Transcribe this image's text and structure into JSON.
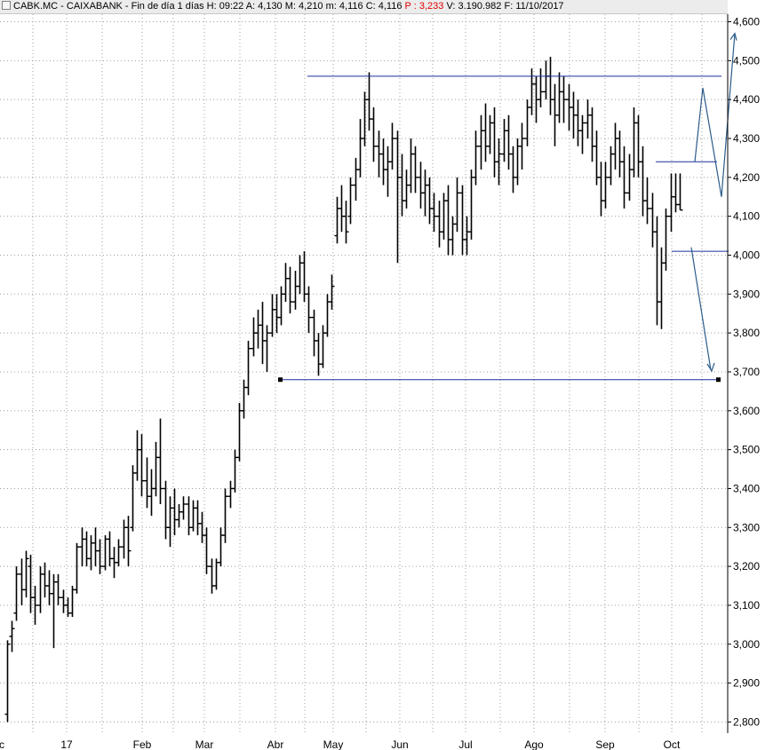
{
  "header": {
    "symbol": "CABK.MC - CAIXABANK",
    "period": "Fin de día 1 días",
    "time": "H: 09:22",
    "open": "A: 4,130",
    "high": "M: 4,210",
    "low": "m: 4,116",
    "close": "C: 4,116",
    "p": "P : 3,233",
    "volume": "V: 3.190.982",
    "date": "F: 11/10/2017"
  },
  "colors": {
    "price": "#000000",
    "trendline": "#1a2f9c",
    "arrow": "#2b5b8a",
    "grid": "#a0a0a0"
  },
  "chart_data": {
    "type": "ohlc",
    "y_axis": {
      "range": [
        2.78,
        4.63
      ],
      "ticks": [
        "4,600",
        "4,500",
        "4,400",
        "4,300",
        "4,200",
        "4,100",
        "4,000",
        "3,900",
        "3,800",
        "3,700",
        "3,600",
        "3,500",
        "3,400",
        "3,300",
        "3,200",
        "3,100",
        "3,000",
        "2,900",
        "2,800"
      ],
      "side": "right"
    },
    "x_axis": {
      "labels": [
        "c",
        "17",
        "Feb",
        "Mar",
        "Abr",
        "May",
        "Jun",
        "Jul",
        "Ago",
        "Sep",
        "Oct"
      ]
    },
    "grid": true,
    "series": [
      {
        "values": [
          [
            2.82,
            3.01,
            2.8,
            3.0
          ],
          [
            3.02,
            3.06,
            2.98,
            3.04
          ],
          [
            3.08,
            3.2,
            3.06,
            3.18
          ],
          [
            3.18,
            3.22,
            3.1,
            3.14
          ],
          [
            3.14,
            3.24,
            3.12,
            3.22
          ],
          [
            3.2,
            3.23,
            3.08,
            3.12
          ],
          [
            3.12,
            3.15,
            3.05,
            3.1
          ],
          [
            3.1,
            3.2,
            3.08,
            3.18
          ],
          [
            3.18,
            3.21,
            3.12,
            3.15
          ],
          [
            3.15,
            3.19,
            3.1,
            3.13
          ],
          [
            3.13,
            3.18,
            2.99,
            3.16
          ],
          [
            3.16,
            3.18,
            3.1,
            3.12
          ],
          [
            3.12,
            3.14,
            3.08,
            3.1
          ],
          [
            3.1,
            3.12,
            3.07,
            3.08
          ],
          [
            3.08,
            3.15,
            3.07,
            3.14
          ],
          [
            3.14,
            3.26,
            3.13,
            3.25
          ],
          [
            3.25,
            3.3,
            3.2,
            3.27
          ],
          [
            3.27,
            3.29,
            3.2,
            3.22
          ],
          [
            3.22,
            3.28,
            3.19,
            3.26
          ],
          [
            3.26,
            3.3,
            3.2,
            3.24
          ],
          [
            3.24,
            3.27,
            3.18,
            3.2
          ],
          [
            3.2,
            3.28,
            3.19,
            3.27
          ],
          [
            3.27,
            3.29,
            3.2,
            3.22
          ],
          [
            3.22,
            3.25,
            3.17,
            3.21
          ],
          [
            3.21,
            3.27,
            3.2,
            3.25
          ],
          [
            3.25,
            3.32,
            3.22,
            3.3
          ],
          [
            3.3,
            3.33,
            3.2,
            3.24
          ],
          [
            3.3,
            3.46,
            3.29,
            3.44
          ],
          [
            3.44,
            3.55,
            3.42,
            3.5
          ],
          [
            3.5,
            3.54,
            3.38,
            3.42
          ],
          [
            3.42,
            3.48,
            3.35,
            3.38
          ],
          [
            3.38,
            3.45,
            3.33,
            3.4
          ],
          [
            3.4,
            3.52,
            3.38,
            3.48
          ],
          [
            3.48,
            3.58,
            3.36,
            3.4
          ],
          [
            3.4,
            3.42,
            3.27,
            3.3
          ],
          [
            3.3,
            3.38,
            3.25,
            3.35
          ],
          [
            3.35,
            3.4,
            3.28,
            3.32
          ],
          [
            3.32,
            3.36,
            3.3,
            3.34
          ],
          [
            3.34,
            3.38,
            3.32,
            3.36
          ],
          [
            3.36,
            3.38,
            3.28,
            3.3
          ],
          [
            3.3,
            3.37,
            3.29,
            3.35
          ],
          [
            3.35,
            3.37,
            3.28,
            3.31
          ],
          [
            3.31,
            3.34,
            3.26,
            3.28
          ],
          [
            3.28,
            3.3,
            3.18,
            3.2
          ],
          [
            3.2,
            3.22,
            3.13,
            3.15
          ],
          [
            3.15,
            3.22,
            3.14,
            3.21
          ],
          [
            3.21,
            3.3,
            3.2,
            3.28
          ],
          [
            3.28,
            3.4,
            3.26,
            3.38
          ],
          [
            3.38,
            3.42,
            3.35,
            3.4
          ],
          [
            3.4,
            3.5,
            3.39,
            3.48
          ],
          [
            3.48,
            3.62,
            3.47,
            3.6
          ],
          [
            3.6,
            3.68,
            3.58,
            3.66
          ],
          [
            3.66,
            3.78,
            3.64,
            3.76
          ],
          [
            3.76,
            3.84,
            3.74,
            3.8
          ],
          [
            3.8,
            3.86,
            3.76,
            3.82
          ],
          [
            3.82,
            3.88,
            3.72,
            3.78
          ],
          [
            3.78,
            3.82,
            3.7,
            3.8
          ],
          [
            3.8,
            3.9,
            3.79,
            3.86
          ],
          [
            3.86,
            3.9,
            3.8,
            3.84
          ],
          [
            3.84,
            3.92,
            3.82,
            3.9
          ],
          [
            3.9,
            3.98,
            3.88,
            3.94
          ],
          [
            3.94,
            3.97,
            3.85,
            3.88
          ],
          [
            3.88,
            3.96,
            3.86,
            3.92
          ],
          [
            3.92,
            4.0,
            3.9,
            3.98
          ],
          [
            3.98,
            4.01,
            3.88,
            3.9
          ],
          [
            3.9,
            3.92,
            3.8,
            3.84
          ],
          [
            3.84,
            3.86,
            3.74,
            3.78
          ],
          [
            3.78,
            3.8,
            3.69,
            3.72
          ],
          [
            3.72,
            3.82,
            3.71,
            3.8
          ],
          [
            3.8,
            3.9,
            3.79,
            3.88
          ],
          [
            3.88,
            3.95,
            3.86,
            3.92
          ],
          [
            4.05,
            4.15,
            4.03,
            4.12
          ],
          [
            4.12,
            4.18,
            4.06,
            4.1
          ],
          [
            4.1,
            4.14,
            4.03,
            4.06
          ],
          [
            4.1,
            4.2,
            4.08,
            4.18
          ],
          [
            4.18,
            4.25,
            4.14,
            4.22
          ],
          [
            4.22,
            4.35,
            4.2,
            4.3
          ],
          [
            4.3,
            4.42,
            4.28,
            4.4
          ],
          [
            4.4,
            4.47,
            4.32,
            4.35
          ],
          [
            4.35,
            4.38,
            4.24,
            4.28
          ],
          [
            4.28,
            4.32,
            4.2,
            4.26
          ],
          [
            4.26,
            4.3,
            4.18,
            4.22
          ],
          [
            4.22,
            4.28,
            4.15,
            4.24
          ],
          [
            4.24,
            4.34,
            4.22,
            4.3
          ],
          [
            4.3,
            4.32,
            3.98,
            4.2
          ],
          [
            4.2,
            4.26,
            4.1,
            4.14
          ],
          [
            4.14,
            4.22,
            4.12,
            4.18
          ],
          [
            4.18,
            4.3,
            4.16,
            4.26
          ],
          [
            4.26,
            4.28,
            4.16,
            4.2
          ],
          [
            4.2,
            4.24,
            4.12,
            4.16
          ],
          [
            4.16,
            4.22,
            4.1,
            4.18
          ],
          [
            4.18,
            4.2,
            4.08,
            4.12
          ],
          [
            4.12,
            4.16,
            4.06,
            4.1
          ],
          [
            4.1,
            4.14,
            4.02,
            4.06
          ],
          [
            4.06,
            4.16,
            4.04,
            4.14
          ],
          [
            4.14,
            4.18,
            4.0,
            4.04
          ],
          [
            4.04,
            4.1,
            4.0,
            4.08
          ],
          [
            4.08,
            4.2,
            4.06,
            4.16
          ],
          [
            4.16,
            4.18,
            4.0,
            4.04
          ],
          [
            4.04,
            4.1,
            4.0,
            4.06
          ],
          [
            4.06,
            4.22,
            4.04,
            4.2
          ],
          [
            4.2,
            4.32,
            4.18,
            4.28
          ],
          [
            4.28,
            4.36,
            4.22,
            4.32
          ],
          [
            4.32,
            4.39,
            4.24,
            4.28
          ],
          [
            4.28,
            4.36,
            4.26,
            4.34
          ],
          [
            4.34,
            4.38,
            4.2,
            4.24
          ],
          [
            4.24,
            4.3,
            4.18,
            4.26
          ],
          [
            4.26,
            4.35,
            4.24,
            4.32
          ],
          [
            4.32,
            4.36,
            4.22,
            4.26
          ],
          [
            4.26,
            4.28,
            4.16,
            4.2
          ],
          [
            4.2,
            4.3,
            4.18,
            4.28
          ],
          [
            4.28,
            4.34,
            4.22,
            4.3
          ],
          [
            4.3,
            4.4,
            4.28,
            4.38
          ],
          [
            4.38,
            4.48,
            4.36,
            4.44
          ],
          [
            4.44,
            4.46,
            4.34,
            4.4
          ],
          [
            4.4,
            4.48,
            4.38,
            4.42
          ],
          [
            4.42,
            4.5,
            4.4,
            4.46
          ],
          [
            4.46,
            4.51,
            4.36,
            4.4
          ],
          [
            4.4,
            4.44,
            4.28,
            4.36
          ],
          [
            4.36,
            4.47,
            4.34,
            4.42
          ],
          [
            4.42,
            4.46,
            4.34,
            4.4
          ],
          [
            4.4,
            4.44,
            4.32,
            4.38
          ],
          [
            4.38,
            4.42,
            4.3,
            4.36
          ],
          [
            4.36,
            4.4,
            4.28,
            4.32
          ],
          [
            4.32,
            4.36,
            4.26,
            4.34
          ],
          [
            4.34,
            4.4,
            4.3,
            4.36
          ],
          [
            4.36,
            4.38,
            4.24,
            4.28
          ],
          [
            4.28,
            4.32,
            4.18,
            4.2
          ],
          [
            4.2,
            4.24,
            4.1,
            4.14
          ],
          [
            4.14,
            4.24,
            4.12,
            4.2
          ],
          [
            4.2,
            4.28,
            4.18,
            4.26
          ],
          [
            4.26,
            4.34,
            4.22,
            4.3
          ],
          [
            4.3,
            4.32,
            4.2,
            4.24
          ],
          [
            4.24,
            4.28,
            4.12,
            4.16
          ],
          [
            4.16,
            4.26,
            4.14,
            4.22
          ],
          [
            4.22,
            4.38,
            4.2,
            4.34
          ],
          [
            4.34,
            4.36,
            4.2,
            4.24
          ],
          [
            4.24,
            4.28,
            4.1,
            4.14
          ],
          [
            4.14,
            4.2,
            4.08,
            4.12
          ],
          [
            4.12,
            4.16,
            4.02,
            4.06
          ],
          [
            4.06,
            4.1,
            3.82,
            3.88
          ],
          [
            3.88,
            4.02,
            3.81,
            3.98
          ],
          [
            3.98,
            4.12,
            3.96,
            4.1
          ],
          [
            4.1,
            4.21,
            4.06,
            4.15
          ],
          [
            4.15,
            4.21,
            4.11,
            4.13
          ],
          [
            4.13,
            4.21,
            4.116,
            4.116
          ]
        ]
      }
    ],
    "annotations": {
      "lines": [
        {
          "y": 4.46
        },
        {
          "y": 4.24
        },
        {
          "y": 4.01
        },
        {
          "y": 3.68
        }
      ],
      "arrows": [
        {
          "from": 4.02,
          "to": 3.7
        },
        {
          "path": [
            4.24,
            4.43,
            4.15,
            4.57
          ]
        }
      ]
    }
  }
}
